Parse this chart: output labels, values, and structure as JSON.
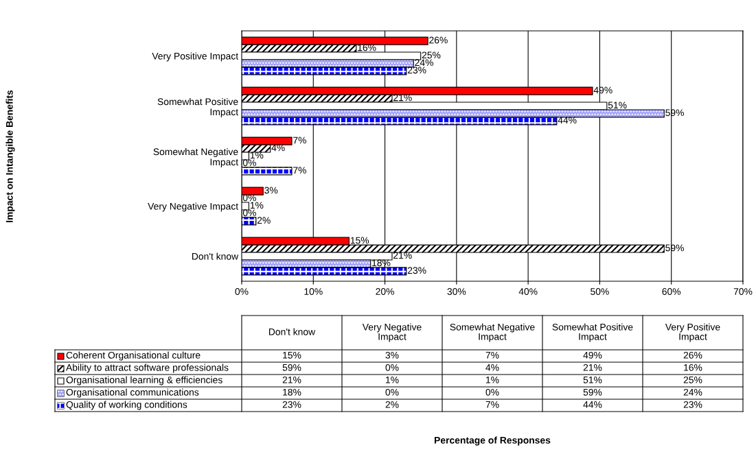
{
  "chart_data": {
    "type": "bar",
    "orientation": "horizontal",
    "annotations": [
      "Impact on Intangible Benefits",
      "Percentage of Responses"
    ],
    "categories": [
      "Very Positive Impact",
      "Somewhat Positive Impact",
      "Somewhat Negative Impact",
      "Very Negative Impact",
      "Don't know"
    ],
    "series": [
      {
        "name": "Coherent Organisational culture",
        "color": "#ff0000",
        "values": [
          26,
          49,
          7,
          3,
          15
        ],
        "value_labels": [
          "26%",
          "49%",
          "7%",
          "3%",
          "15%"
        ]
      },
      {
        "name": "Ability to attract software professionals",
        "color": "#000000",
        "values": [
          16,
          21,
          4,
          0,
          59
        ],
        "value_labels": [
          "16%",
          "21%",
          "4%",
          "0%",
          "59%"
        ]
      },
      {
        "name": "Organisational learning & efficiencies",
        "color": "#ffffff",
        "values": [
          25,
          51,
          1,
          1,
          21
        ],
        "value_labels": [
          "25%",
          "51%",
          "1%",
          "1%",
          "21%"
        ]
      },
      {
        "name": "Organisational communications",
        "color": "#9999ff",
        "values": [
          24,
          59,
          0,
          0,
          18
        ],
        "value_labels": [
          "24%",
          "59%",
          "0%",
          "0%",
          "18%"
        ]
      },
      {
        "name": "Quality of working conditions",
        "color": "#0000ff",
        "values": [
          23,
          44,
          7,
          2,
          23
        ],
        "value_labels": [
          "23%",
          "44%",
          "7%",
          "2%",
          "23%"
        ]
      }
    ],
    "xlim": [
      0,
      70
    ],
    "xticks": [
      {
        "value": 0,
        "label": "0%"
      },
      {
        "value": 10,
        "label": "10%"
      },
      {
        "value": 20,
        "label": "20%"
      },
      {
        "value": 30,
        "label": "30%"
      },
      {
        "value": 40,
        "label": "40%"
      },
      {
        "value": 50,
        "label": "50%"
      },
      {
        "value": 60,
        "label": "60%"
      },
      {
        "value": 70,
        "label": "70%"
      }
    ],
    "grid": "x",
    "legend": "bottom"
  }
}
